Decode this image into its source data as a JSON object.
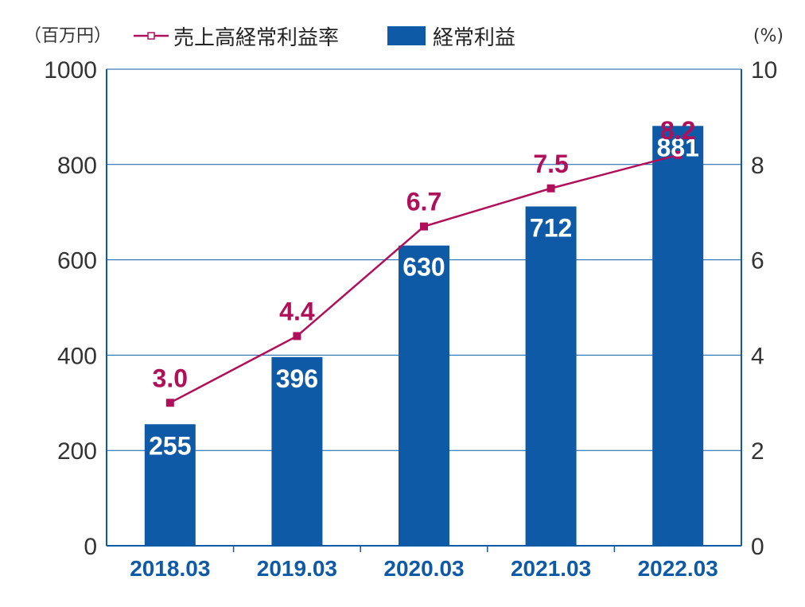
{
  "colors": {
    "bar": "#0f5aa6",
    "line": "#b0105a",
    "axis": "#0f5aa6",
    "grid": "#0f5aa6",
    "category_text": "#0f5aa6",
    "line_label": "#b0105a"
  },
  "chart_data": {
    "type": "bar",
    "categories": [
      "2018.03",
      "2019.03",
      "2020.03",
      "2021.03",
      "2022.03"
    ],
    "series": [
      {
        "name": "経常利益",
        "type": "bar",
        "axis": "left",
        "values": [
          255,
          396,
          630,
          712,
          881
        ]
      },
      {
        "name": "売上高経常利益率",
        "type": "line",
        "axis": "right",
        "values": [
          3.0,
          4.4,
          6.7,
          7.5,
          8.2
        ]
      }
    ],
    "y_left": {
      "unit": "（百万円）",
      "range": [
        0,
        1000
      ],
      "ticks": [
        0,
        200,
        400,
        600,
        800,
        1000
      ]
    },
    "y_right": {
      "unit": "(%)",
      "range": [
        0,
        10
      ],
      "ticks": [
        0,
        2,
        4,
        6,
        8,
        10
      ]
    },
    "grid": true,
    "legend": {
      "placement": "top-left",
      "items": [
        "売上高経常利益率",
        "経常利益"
      ]
    },
    "bar_labels": [
      "255",
      "396",
      "630",
      "712",
      "881"
    ],
    "line_labels": [
      "3.0",
      "4.4",
      "6.7",
      "7.5",
      "8.2"
    ]
  }
}
